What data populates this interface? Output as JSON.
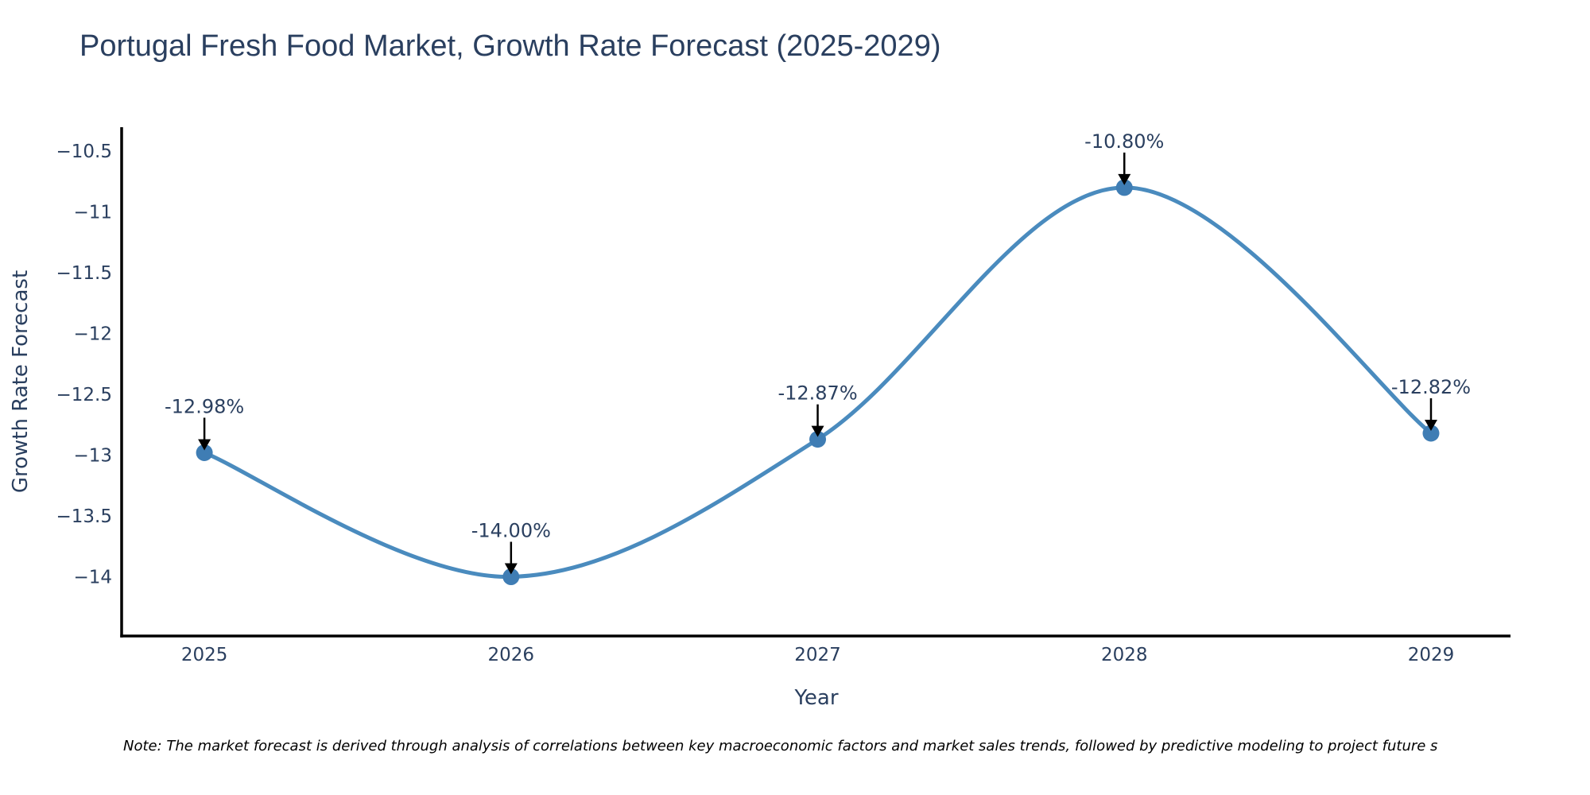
{
  "title": "Portugal Fresh Food Market, Growth Rate Forecast (2025-2029)",
  "note": "Note: The market forecast is derived through analysis of correlations between key macroeconomic factors and market sales trends, followed by predictive modeling to project future s",
  "chart_data": {
    "type": "line",
    "line_shape": "spline",
    "title": "Portugal Fresh Food Market, Growth Rate Forecast (2025-2029)",
    "xlabel": "Year",
    "ylabel": "Growth Rate Forecast",
    "categories": [
      "2025",
      "2026",
      "2027",
      "2028",
      "2029"
    ],
    "values": [
      -12.98,
      -14.0,
      -12.87,
      -10.8,
      -12.82
    ],
    "point_labels": [
      "-12.98%",
      "-14.00%",
      "-12.87%",
      "-10.80%",
      "-12.82%"
    ],
    "yticks": [
      -10.5,
      -11,
      -11.5,
      -12,
      -12.5,
      -13,
      -13.5,
      -14
    ],
    "ytick_labels": [
      "−10.5",
      "−11",
      "−11.5",
      "−12",
      "−12.5",
      "−13",
      "−13.5",
      "−14"
    ],
    "ylim": [
      -14.49,
      -10.32
    ],
    "grid": false,
    "legend": "none",
    "marker": "circle",
    "annotation_arrows": true,
    "colors": {
      "line": "#4a8bbe",
      "marker": "#3f7db4",
      "text": "#2a3f5f",
      "axis": "#000000",
      "note_text": "#000000",
      "background": "#ffffff"
    }
  }
}
